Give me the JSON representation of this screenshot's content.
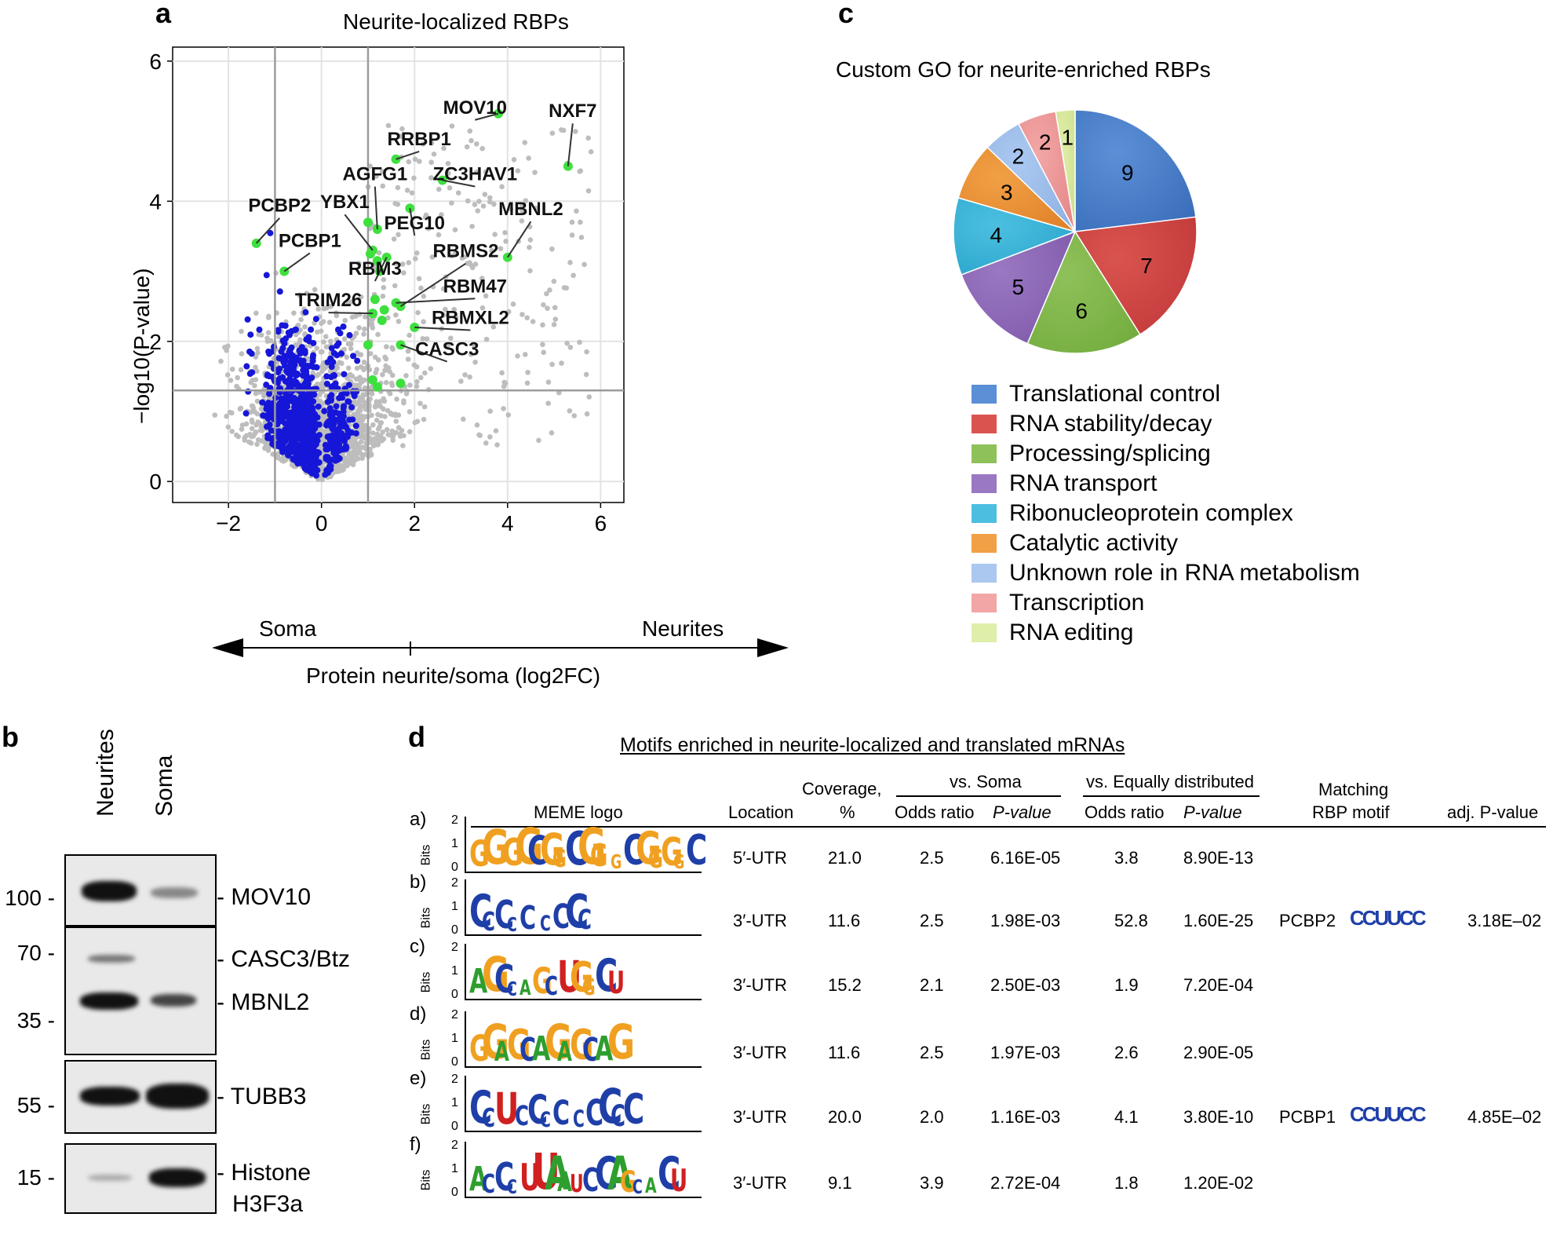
{
  "panel_a": {
    "label": "a",
    "title": "Neurite-localized RBPs",
    "ylabel": "−log10(P-value)",
    "xlabel": "Protein neurite/soma (log2FC)",
    "left_arrow_label": "Soma",
    "right_arrow_label": "Neurites"
  },
  "panel_b": {
    "label": "b",
    "lanes": [
      "Neurites",
      "Soma"
    ],
    "mw_markers": [
      "100",
      "70",
      "35",
      "55",
      "15"
    ],
    "proteins": [
      "MOV10",
      "CASC3/Btz",
      "MBNL2",
      "TUBB3",
      "Histone",
      "H3F3a"
    ]
  },
  "panel_c": {
    "label": "c",
    "title": "Custom GO for neurite-enriched RBPs"
  },
  "panel_d": {
    "label": "d",
    "title": "Motifs enriched in neurite-localized and translated mRNAs",
    "headers": {
      "meme_logo": "MEME logo",
      "location": "Location",
      "coverage": "Coverage,",
      "coverage_unit": "%",
      "vs_soma": "vs. Soma",
      "vs_equal": "vs. Equally distributed",
      "odds_ratio": "Odds ratio",
      "p_value": "P-value",
      "matching": "Matching",
      "rbp_motif": "RBP motif",
      "adj_p": "adj. P-value"
    },
    "bits_label": "Bits",
    "rows": [
      {
        "id": "a)",
        "location": "5′-UTR",
        "coverage": "21.0",
        "or_soma": "2.5",
        "p_soma": "6.16E-05",
        "or_eq": "3.8",
        "p_eq": "8.90E-13",
        "rbp": "",
        "adj_p": "",
        "logo_text": "GG GGCGGCGG GCGGGGCGGG"
      },
      {
        "id": "b)",
        "location": "3′-UTR",
        "coverage": "11.6",
        "or_soma": "2.5",
        "p_soma": "1.98E-03",
        "or_eq": "52.8",
        "p_eq": "1.60E-25",
        "rbp": "PCBP2",
        "adj_p": "3.18E–02",
        "logo_text": "CCCCC CCCC"
      },
      {
        "id": "c)",
        "location": "3′-UTR",
        "coverage": "15.2",
        "or_soma": "2.1",
        "p_soma": "2.50E-03",
        "or_eq": "1.9",
        "p_eq": "7.20E-04",
        "rbp": "",
        "adj_p": "",
        "logo_text": "AGCCAGCUGGCU"
      },
      {
        "id": "d)",
        "location": "3′-UTR",
        "coverage": "11.6",
        "or_soma": "2.5",
        "p_soma": "1.97E-03",
        "or_eq": "2.6",
        "p_eq": "2.90E-05",
        "rbp": "",
        "adj_p": "",
        "logo_text": "GGAGCAGAGCAG"
      },
      {
        "id": "e)",
        "location": "3′-UTR",
        "coverage": "20.0",
        "or_soma": "2.0",
        "p_soma": "1.16E-03",
        "or_eq": "4.1",
        "p_eq": "3.80E-10",
        "rbp": "PCBP1",
        "adj_p": "4.85E–02",
        "logo_text": "CCU CCCC CCCCC"
      },
      {
        "id": "f)",
        "location": "3′-UTR",
        "coverage": "9.1",
        "or_soma": "3.9",
        "p_soma": "2.72E-04",
        "or_eq": "1.8",
        "p_eq": "1.20E-02",
        "rbp": "",
        "adj_p": "",
        "logo_text": "ACCCUUAAUCCAGCACU"
      }
    ]
  },
  "chart_data": [
    {
      "type": "scatter",
      "title": "Neurite-localized RBPs",
      "xlabel": "Protein neurite/soma (log2FC)",
      "ylabel": "−log10(P-value)",
      "xlim": [
        -3.2,
        6.5
      ],
      "ylim": [
        -0.3,
        6.2
      ],
      "xticks": [
        "−2",
        "0",
        "2",
        "4",
        "6"
      ],
      "xtick_values": [
        -2,
        0,
        2,
        4,
        6
      ],
      "yticks": [
        "0",
        "2",
        "4",
        "6"
      ],
      "ytick_values": [
        0,
        2,
        4,
        6
      ],
      "threshold_lines": {
        "x": [
          -1,
          1
        ],
        "y": 1.3
      },
      "highlighted": [
        {
          "label": "NXF7",
          "x": 5.3,
          "y": 4.5,
          "lx": 5.4,
          "ly": 5.2
        },
        {
          "label": "MOV10",
          "x": 3.8,
          "y": 5.25,
          "lx": 3.3,
          "ly": 5.25
        },
        {
          "label": "RRBP1",
          "x": 1.6,
          "y": 4.6,
          "lx": 2.1,
          "ly": 4.8
        },
        {
          "label": "AGFG1",
          "x": 1.2,
          "y": 3.6,
          "lx": 1.15,
          "ly": 4.3
        },
        {
          "label": "ZC3HAV1",
          "x": 2.6,
          "y": 4.3,
          "lx": 3.3,
          "ly": 4.3
        },
        {
          "label": "MBNL2",
          "x": 4.0,
          "y": 3.2,
          "lx": 4.5,
          "ly": 3.8
        },
        {
          "label": "PEG10",
          "x": 1.9,
          "y": 3.9,
          "lx": 2.0,
          "ly": 3.6
        },
        {
          "label": "YBX1",
          "x": 1.1,
          "y": 3.3,
          "lx": 0.5,
          "ly": 3.9
        },
        {
          "label": "PCBP2",
          "x": -1.4,
          "y": 3.4,
          "lx": -0.9,
          "ly": 3.85
        },
        {
          "label": "PCBP1",
          "x": -0.8,
          "y": 3.0,
          "lx": -0.25,
          "ly": 3.35
        },
        {
          "label": "RBMS2",
          "x": 1.7,
          "y": 2.5,
          "lx": 3.1,
          "ly": 3.2
        },
        {
          "label": "RBM3",
          "x": 1.4,
          "y": 3.2,
          "lx": 1.15,
          "ly": 2.95
        },
        {
          "label": "RBM47",
          "x": 1.6,
          "y": 2.55,
          "lx": 3.3,
          "ly": 2.7
        },
        {
          "label": "TRIM26",
          "x": 1.1,
          "y": 2.4,
          "lx": 0.15,
          "ly": 2.5
        },
        {
          "label": "RBMXL2",
          "x": 2.0,
          "y": 2.2,
          "lx": 3.2,
          "ly": 2.25
        },
        {
          "label": "CASC3",
          "x": 1.7,
          "y": 1.95,
          "lx": 2.7,
          "ly": 1.8
        },
        {
          "label": "",
          "x": 1.7,
          "y": 1.4,
          "lx": 0,
          "ly": 0
        }
      ],
      "extra_green": [
        [
          1.0,
          3.7
        ],
        [
          1.05,
          3.25
        ],
        [
          1.2,
          3.15
        ],
        [
          1.15,
          2.6
        ],
        [
          1.3,
          2.3
        ],
        [
          1.1,
          2.4
        ],
        [
          1.0,
          1.95
        ],
        [
          1.1,
          1.45
        ],
        [
          1.2,
          1.35
        ],
        [
          1.25,
          3.0
        ],
        [
          1.35,
          2.45
        ]
      ]
    },
    {
      "type": "pie",
      "title": "Custom GO for neurite-enriched RBPs",
      "categories": [
        "Translational control",
        "RNA stability/decay",
        "Processing/splicing",
        "RNA transport",
        "Ribonucleoprotein complex",
        "Catalytic activity",
        "Unknown role in RNA metabolism",
        "Transcription",
        "RNA editing"
      ],
      "values": [
        9,
        7,
        6,
        5,
        4,
        3,
        2,
        2,
        1
      ],
      "colors": [
        "#5b8fd6",
        "#d9544f",
        "#8fc15a",
        "#9b78c2",
        "#4cbfe0",
        "#f1a045",
        "#aac8f0",
        "#f2a6a5",
        "#dfeea9"
      ],
      "dark_colors": [
        "#3c6fbb",
        "#c2393a",
        "#74ad3f",
        "#7f5aab",
        "#2aa6cd",
        "#e1822a",
        "#90b3e4",
        "#e5898a",
        "#cde08c"
      ]
    }
  ]
}
